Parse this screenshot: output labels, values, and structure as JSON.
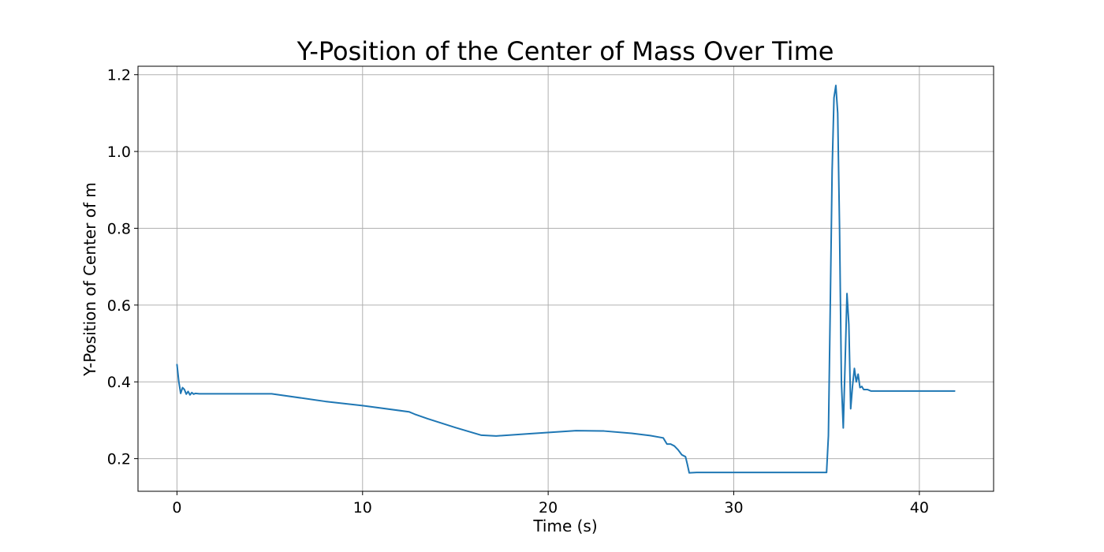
{
  "chart_data": {
    "type": "line",
    "title": "Y-Position of the Center of Mass Over Time",
    "xlabel": "Time (s)",
    "ylabel": "Y-Position of Center of  m",
    "xlim": [
      -2.1,
      44.0
    ],
    "ylim": [
      0.115,
      1.222
    ],
    "xticks": [
      0,
      10,
      20,
      30,
      40
    ],
    "yticks": [
      0.2,
      0.4,
      0.6,
      0.8,
      1.0,
      1.2
    ],
    "xtick_labels": [
      "0",
      "10",
      "20",
      "30",
      "40"
    ],
    "ytick_labels": [
      "0.2",
      "0.4",
      "0.6",
      "0.8",
      "1.0",
      "1.2"
    ],
    "grid": true,
    "color": "#1f77b4",
    "series": [
      {
        "x": [
          0.0,
          0.1,
          0.2,
          0.3,
          0.4,
          0.5,
          0.6,
          0.7,
          0.8,
          0.9,
          1.0,
          1.2,
          1.5,
          2.0,
          3.0,
          4.0,
          5.1,
          8.0,
          10.0,
          12.5,
          12.8,
          13.5,
          15.0,
          16.4,
          17.2,
          19.0,
          21.5,
          23.0,
          24.5,
          25.5,
          26.2,
          26.4,
          26.6,
          26.8,
          27.0,
          27.2,
          27.4,
          27.5,
          27.6,
          28.0,
          30.0,
          32.0,
          35.0,
          35.1,
          35.2,
          35.3,
          35.4,
          35.5,
          35.6,
          35.7,
          35.8,
          35.9,
          36.0,
          36.1,
          36.2,
          36.3,
          36.4,
          36.5,
          36.6,
          36.7,
          36.8,
          36.9,
          37.0,
          37.2,
          37.4,
          37.6,
          37.8,
          38.0,
          40.0,
          41.9
        ],
        "y": [
          0.445,
          0.4,
          0.37,
          0.385,
          0.38,
          0.368,
          0.375,
          0.366,
          0.372,
          0.368,
          0.37,
          0.369,
          0.369,
          0.369,
          0.369,
          0.369,
          0.369,
          0.349,
          0.338,
          0.322,
          0.316,
          0.304,
          0.281,
          0.261,
          0.259,
          0.265,
          0.273,
          0.272,
          0.266,
          0.26,
          0.254,
          0.238,
          0.238,
          0.233,
          0.223,
          0.21,
          0.205,
          0.185,
          0.163,
          0.164,
          0.164,
          0.164,
          0.164,
          0.26,
          0.6,
          0.95,
          1.14,
          1.172,
          1.1,
          0.8,
          0.4,
          0.28,
          0.45,
          0.63,
          0.55,
          0.33,
          0.39,
          0.435,
          0.4,
          0.42,
          0.385,
          0.388,
          0.38,
          0.38,
          0.376,
          0.376,
          0.376,
          0.376,
          0.376,
          0.376
        ]
      }
    ]
  }
}
